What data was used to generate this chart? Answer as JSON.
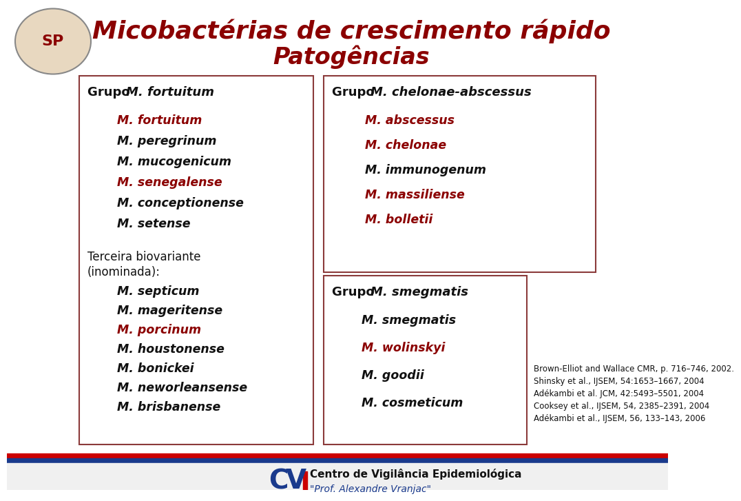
{
  "title_line1": "Micobactérias de crescimento rápido",
  "title_line2": "Patogências",
  "title_color": "#8B0000",
  "bg_color": "#FFFFFF",
  "box_color": "#8B0000",
  "black_text": "#111111",
  "red_text": "#8B0000",
  "left_box_header_normal": "Grupo ",
  "left_box_header_italic": "M. fortuitum",
  "left_box_items": [
    {
      "text": "M. fortuitum",
      "color": "#8B0000"
    },
    {
      "text": "M. peregrinum",
      "color": "#111111"
    },
    {
      "text": "M. mucogenicum",
      "color": "#111111"
    },
    {
      "text": "M. senegalense",
      "color": "#8B0000"
    },
    {
      "text": "M. conceptionense",
      "color": "#111111"
    },
    {
      "text": "M. setense",
      "color": "#111111"
    }
  ],
  "left_box_terceira_items": [
    {
      "text": "M. septicum",
      "color": "#111111"
    },
    {
      "text": "M. mageritense",
      "color": "#111111"
    },
    {
      "text": "M. porcinum",
      "color": "#8B0000"
    },
    {
      "text": "M. houstonense",
      "color": "#111111"
    },
    {
      "text": "M. bonickei",
      "color": "#111111"
    },
    {
      "text": "M. neworleansense",
      "color": "#111111"
    },
    {
      "text": "M. brisbanense",
      "color": "#111111"
    }
  ],
  "top_right_box_header_normal": "Grupo ",
  "top_right_box_header_italic": "M. chelonae-abscessus",
  "top_right_box_items": [
    {
      "text": "M. abscessus",
      "color": "#8B0000"
    },
    {
      "text": "M. chelonae",
      "color": "#8B0000"
    },
    {
      "text": "M. immunogenum",
      "color": "#111111"
    },
    {
      "text": "M. massiliense",
      "color": "#8B0000"
    },
    {
      "text": "M. bolletii",
      "color": "#8B0000"
    }
  ],
  "bottom_right_box_header_normal": "Grupo ",
  "bottom_right_box_header_italic": "M. smegmatis",
  "bottom_right_box_items": [
    {
      "text": "M. smegmatis",
      "color": "#111111"
    },
    {
      "text": "M. wolinskyi",
      "color": "#8B0000"
    },
    {
      "text": "M. goodii",
      "color": "#111111"
    },
    {
      "text": "M. cosmeticum",
      "color": "#111111"
    }
  ],
  "references": [
    "Brown-Elliot and Wallace CMR, p. 716–746, 2002.",
    "Shinsky et al., IJSEM, 54:1653–1667, 2004",
    "Adékambi et al. JCM, 42:5493–5501, 2004",
    "Cooksey et al., IJSEM, 54, 2385–2391, 2004",
    "Adékambi et al., IJSEM, 56, 133–143, 2006"
  ],
  "footer_blue": "#1a3a8c",
  "footer_red": "#CC0000",
  "footer_text1": "Centro de Vigilância Epidemiológica",
  "footer_text2": "\"Prof. Alexandre Vranjac\""
}
